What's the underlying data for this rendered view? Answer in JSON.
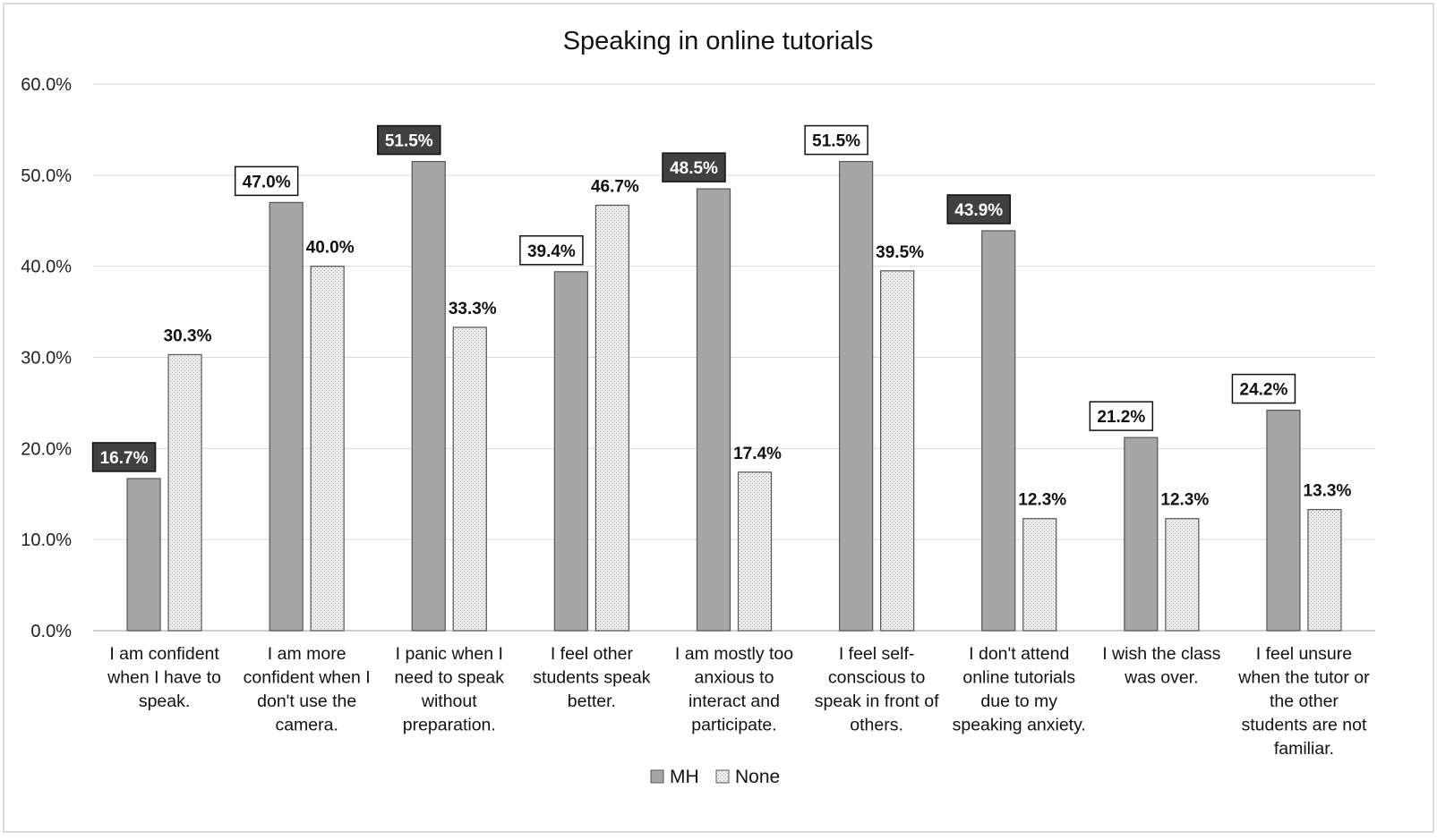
{
  "chart_data": {
    "type": "bar",
    "title": "Speaking in online tutorials",
    "xlabel": "",
    "ylabel": "",
    "ylim": [
      0,
      60
    ],
    "yticks": [
      "0.0%",
      "10.0%",
      "20.0%",
      "30.0%",
      "40.0%",
      "50.0%",
      "60.0%"
    ],
    "grid": true,
    "legend_position": "bottom",
    "categories": [
      [
        "I am confident",
        "when I have to",
        "speak."
      ],
      [
        "I am more",
        "confident when I",
        "don't use the",
        "camera."
      ],
      [
        "I panic when I",
        "need to speak",
        "without",
        "preparation."
      ],
      [
        "I feel other",
        "students speak",
        "better."
      ],
      [
        "I am mostly too",
        "anxious to",
        "interact and",
        "participate."
      ],
      [
        "I feel self-",
        "conscious to",
        "speak in front of",
        "others."
      ],
      [
        "I don't attend",
        "online tutorials",
        "due to my",
        "speaking anxiety."
      ],
      [
        "I wish the class",
        "was over."
      ],
      [
        "I feel unsure",
        "when the tutor or",
        "the other",
        "students are not",
        "familiar."
      ]
    ],
    "series": [
      {
        "name": "MH",
        "color": "#a6a6a6",
        "values": [
          16.7,
          47.0,
          51.5,
          39.4,
          48.5,
          51.5,
          43.9,
          21.2,
          24.2
        ],
        "labels": [
          "16.7%",
          "47.0%",
          "51.5%",
          "39.4%",
          "48.5%",
          "51.5%",
          "43.9%",
          "21.2%",
          "24.2%"
        ],
        "label_style": [
          "dark",
          "boxed",
          "dark",
          "boxed",
          "dark",
          "boxed",
          "dark",
          "boxed",
          "boxed"
        ]
      },
      {
        "name": "None",
        "color": "#e6e6e6",
        "values": [
          30.3,
          40.0,
          33.3,
          46.7,
          17.4,
          39.5,
          12.3,
          12.3,
          13.3
        ],
        "labels": [
          "30.3%",
          "40.0%",
          "33.3%",
          "46.7%",
          "17.4%",
          "39.5%",
          "12.3%",
          "12.3%",
          "13.3%"
        ]
      }
    ]
  }
}
